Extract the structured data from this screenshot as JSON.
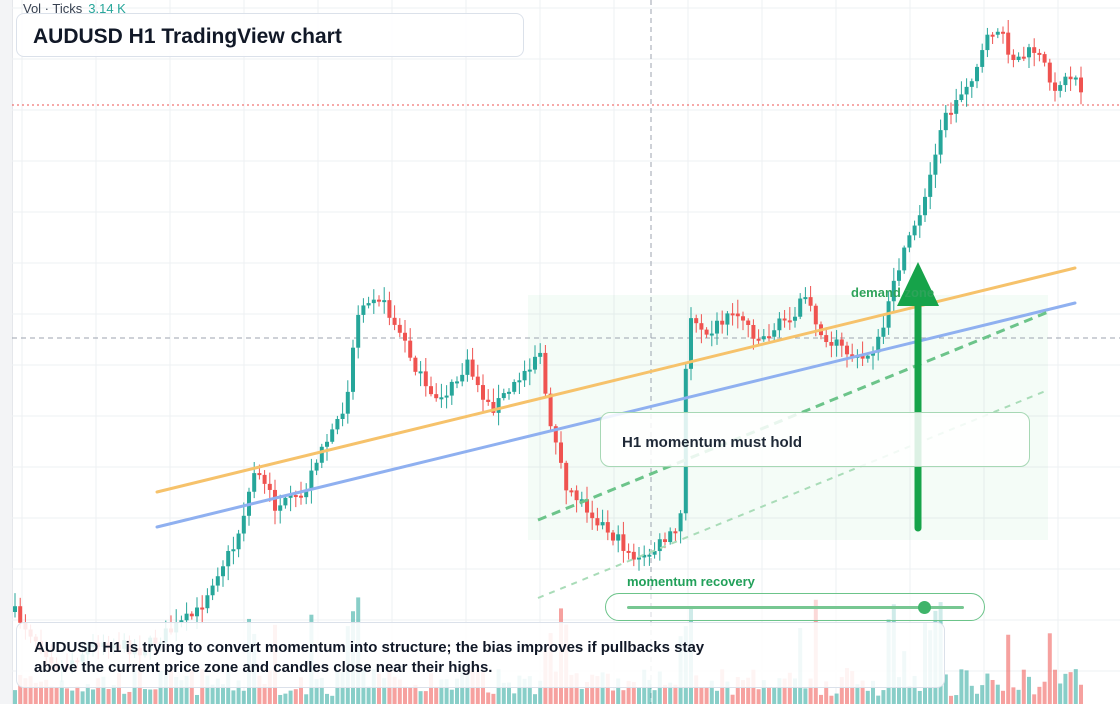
{
  "header": {
    "title": "AUDUSD H1 TradingView chart"
  },
  "volume_legend": {
    "label": "Vol · Ticks",
    "value": "3.14 K"
  },
  "annotations": {
    "zone_label": "demand zone",
    "momentum_card": "H1 momentum must hold",
    "slider_label": "momentum recovery",
    "slider_level": 0.88,
    "caption": "AUDUSD H1 is trying to convert momentum into structure; the bias improves if pullbacks stay above the current price zone and candles close near their highs."
  },
  "colors": {
    "bull": "#26a69a",
    "bear": "#ef5350",
    "trend_upper": "#f6c26b",
    "trend_lower": "#8fb0f0",
    "zone_accent": "#16a34a"
  },
  "icons": {
    "arrow": "arrow-up-icon",
    "slider_knob": "slider-knob-icon"
  }
}
